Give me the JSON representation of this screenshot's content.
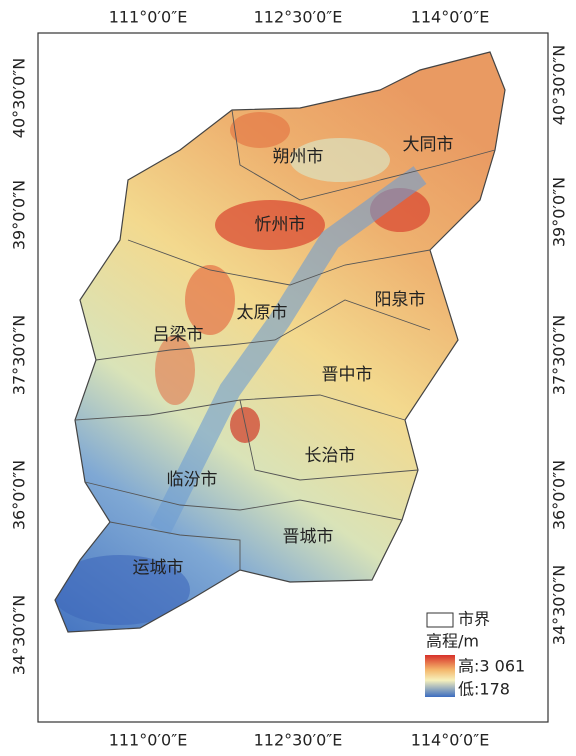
{
  "axes": {
    "top": [
      "111°0′0″E",
      "112°30′0″E",
      "114°0′0″E"
    ],
    "bottom": [
      "111°0′0″E",
      "112°30′0″E",
      "114°0′0″E"
    ],
    "left": [
      "40°30′0″N",
      "39°0′0″N",
      "37°30′0″N",
      "36°0′0″N",
      "34°30′0″N"
    ],
    "right": [
      "40°30′0″N",
      "39°0′0″N",
      "37°30′0″N",
      "36°0′0″N",
      "34°30′0″N"
    ]
  },
  "cities": [
    "朔州市",
    "大同市",
    "忻州市",
    "阳泉市",
    "太原市",
    "吕梁市",
    "晋中市",
    "长治市",
    "临汾市",
    "晋城市",
    "运城市"
  ],
  "legend": {
    "boundary": "市界",
    "title": "高程/m",
    "high": "高:3 061",
    "low": "低:178"
  }
}
